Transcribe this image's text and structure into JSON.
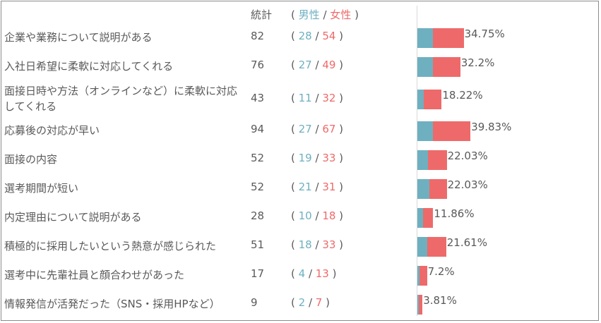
{
  "header": {
    "total": "統計",
    "open_paren": "(",
    "male": "男性",
    "slash": "/",
    "female": "女性",
    "close_paren": ")"
  },
  "colors": {
    "male": "#6eb0c0",
    "female": "#ee6a6a"
  },
  "chart_data": {
    "type": "bar",
    "orientation": "horizontal",
    "stacked": true,
    "categories": [
      "企業や業務について説明がある",
      "入社日希望に柔軟に対応してくれる",
      "面接日時や方法（オンラインなど）に柔軟に対応してくれる",
      "応募後の対応が早い",
      "面接の内容",
      "選考期間が短い",
      "内定理由について説明がある",
      "積極的に採用したいという熱意が感じられた",
      "選考中に先輩社員と顔合わせがあった",
      "情報発信が活発だった（SNS・採用HPなど）"
    ],
    "totals": [
      82,
      76,
      43,
      94,
      52,
      52,
      28,
      51,
      17,
      9
    ],
    "series": [
      {
        "name": "男性",
        "values": [
          28,
          27,
          11,
          27,
          19,
          21,
          10,
          18,
          4,
          2
        ]
      },
      {
        "name": "女性",
        "values": [
          54,
          49,
          32,
          67,
          33,
          31,
          18,
          33,
          13,
          7
        ]
      }
    ],
    "percent_labels": [
      "34.75%",
      "32.2%",
      "18.22%",
      "39.83%",
      "22.03%",
      "22.03%",
      "11.86%",
      "21.61%",
      "7.2%",
      "3.81%"
    ],
    "xlim": [
      0,
      100
    ],
    "grid": false,
    "legend": "header-top"
  }
}
